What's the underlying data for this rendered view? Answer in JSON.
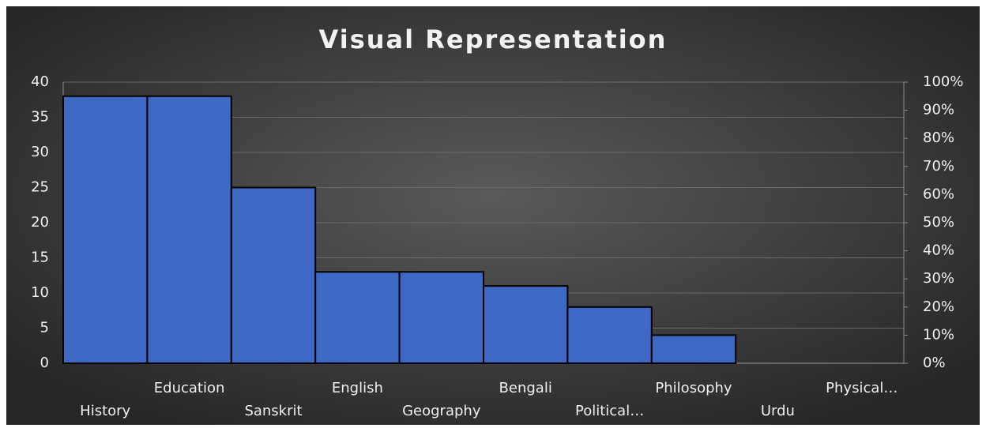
{
  "chart_data": {
    "type": "bar",
    "title": "Visual Representation",
    "categories": [
      "History",
      "Education",
      "Sanskrit",
      "English",
      "Geography",
      "Bengali",
      "Political…",
      "Philosophy",
      "Urdu",
      "Physical…"
    ],
    "values": [
      38,
      38,
      25,
      13,
      13,
      11,
      8,
      4,
      0,
      0
    ],
    "color": "#3d68c4",
    "ylim": [
      0,
      40
    ],
    "yticks": [
      0,
      5,
      10,
      15,
      20,
      25,
      30,
      35,
      40
    ],
    "y2lim": [
      0,
      100
    ],
    "y2ticks": [
      {
        "value": 0,
        "label": "0%"
      },
      {
        "value": 10,
        "label": "10%"
      },
      {
        "value": 20,
        "label": "20%"
      },
      {
        "value": 30,
        "label": "30%"
      },
      {
        "value": 40,
        "label": "40%"
      },
      {
        "value": 50,
        "label": "50%"
      },
      {
        "value": 60,
        "label": "60%"
      },
      {
        "value": 70,
        "label": "70%"
      },
      {
        "value": 80,
        "label": "80%"
      },
      {
        "value": 90,
        "label": "90%"
      },
      {
        "value": 100,
        "label": "100%"
      }
    ],
    "grid": true
  }
}
